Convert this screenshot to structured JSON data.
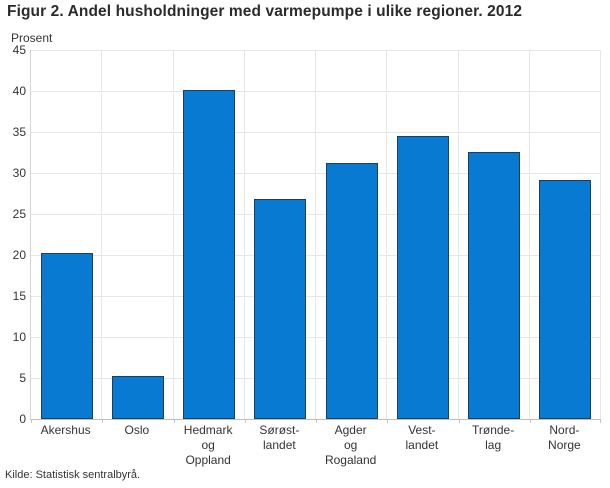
{
  "title": "Figur 2. Andel husholdninger med varmepumpe i ulike regioner. 2012",
  "source": "Kilde: Statistisk sentralbyrå.",
  "colors": {
    "bar_fill": "#087ad2",
    "bar_border": "#1c3f5e",
    "gridline": "#e6e6e6",
    "axis_line": "#bfbfbf",
    "text": "#333333",
    "title_text": "#2b2b2b"
  },
  "chart_data": {
    "type": "bar",
    "title": "Figur 2. Andel husholdninger med varmepumpe i ulike regioner. 2012",
    "ylabel": "Prosent",
    "xlabel": "",
    "categories": [
      "Akershus",
      "Oslo",
      "Hedmark\nog\nOppland",
      "Sørøst-\nlandet",
      "Agder\nog\nRogaland",
      "Vest-\nlandet",
      "Trønde-\nlag",
      "Nord-\nNorge"
    ],
    "values": [
      20.2,
      5.2,
      40.1,
      26.8,
      31.2,
      34.5,
      32.6,
      29.2
    ],
    "ylim": [
      0,
      45
    ],
    "ytick_step": 5,
    "yticks": [
      0,
      5,
      10,
      15,
      20,
      25,
      30,
      35,
      40,
      45
    ],
    "grid": "on",
    "legend": "none",
    "source": "Kilde: Statistisk sentralbyrå."
  }
}
